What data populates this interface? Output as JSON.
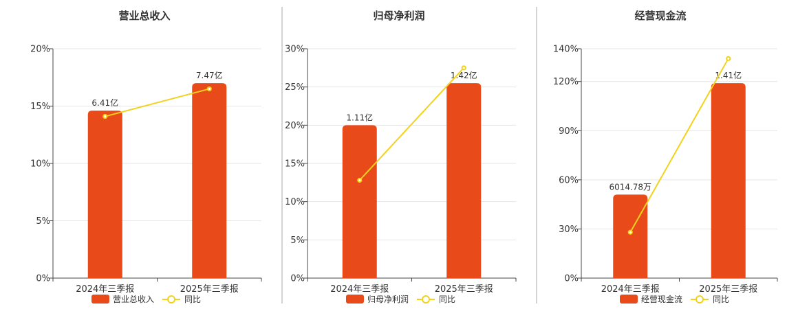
{
  "colors": {
    "bar": "#e84a19",
    "line": "#f2d21c",
    "grid": "#e6e6e6",
    "axis": "#444444",
    "divider": "#aaaaaa"
  },
  "chart_data": [
    {
      "type": "bar",
      "title": "营业总收入",
      "categories": [
        "2024年三季报",
        "2025年三季报"
      ],
      "ylim": [
        0,
        20
      ],
      "y_ticks": [
        "0%",
        "5%",
        "10%",
        "15%",
        "20%"
      ],
      "series": [
        {
          "name": "营业总收入",
          "type": "bar",
          "values": [
            14.6,
            17.0
          ],
          "labels": [
            "6.41亿",
            "7.47亿"
          ]
        },
        {
          "name": "同比",
          "type": "line",
          "values": [
            14.1,
            16.5
          ]
        }
      ]
    },
    {
      "type": "bar",
      "title": "归母净利润",
      "categories": [
        "2024年三季报",
        "2025年三季报"
      ],
      "ylim": [
        0,
        30
      ],
      "y_ticks": [
        "0%",
        "5%",
        "10%",
        "15%",
        "20%",
        "25%",
        "30%"
      ],
      "series": [
        {
          "name": "归母净利润",
          "type": "bar",
          "values": [
            20.0,
            25.5
          ],
          "labels": [
            "1.11亿",
            "1.42亿"
          ]
        },
        {
          "name": "同比",
          "type": "line",
          "values": [
            12.8,
            27.5
          ]
        }
      ]
    },
    {
      "type": "bar",
      "title": "经营现金流",
      "categories": [
        "2024年三季报",
        "2025年三季报"
      ],
      "ylim": [
        0,
        140
      ],
      "y_ticks": [
        "0%",
        "30%",
        "60%",
        "90%",
        "120%",
        "140%"
      ],
      "series": [
        {
          "name": "经营现金流",
          "type": "bar",
          "values": [
            51,
            119
          ],
          "labels": [
            "6014.78万",
            "1.41亿"
          ]
        },
        {
          "name": "同比",
          "type": "line",
          "values": [
            28,
            134
          ]
        }
      ]
    }
  ]
}
